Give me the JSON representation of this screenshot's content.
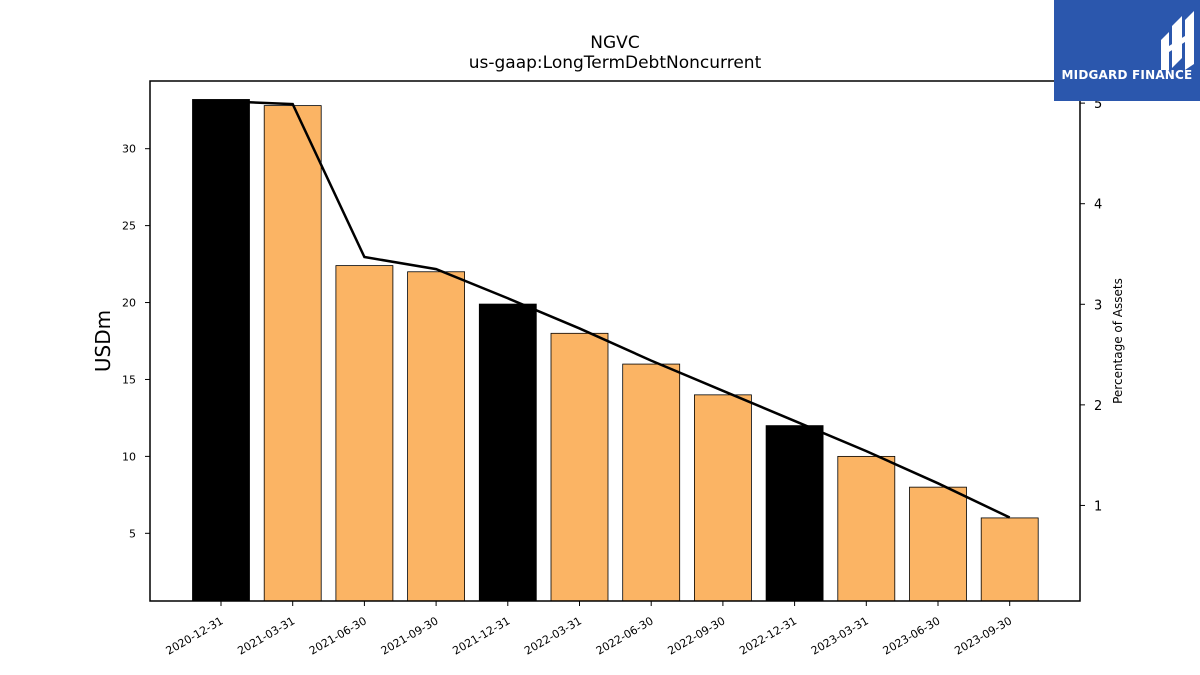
{
  "chart_data": {
    "type": "bar",
    "title": "NGVC",
    "subtitle": "us-gaap:LongTermDebtNoncurrent",
    "ylabel": "USDm",
    "y2label": "Percentage of Assets",
    "categories": [
      "2020-12-31",
      "2021-03-31",
      "2021-06-30",
      "2021-09-30",
      "2021-12-31",
      "2022-03-31",
      "2022-06-30",
      "2022-09-30",
      "2022-12-31",
      "2023-03-31",
      "2023-06-30",
      "2023-09-30"
    ],
    "series": [
      {
        "type": "bar",
        "axis": "left",
        "values": [
          33.2,
          32.8,
          22.4,
          22.0,
          19.9,
          18.0,
          16.0,
          14.0,
          12.0,
          10.0,
          8.0,
          6.0
        ],
        "colors": [
          "#000000",
          "#fbb464",
          "#fbb464",
          "#fbb464",
          "#000000",
          "#fbb464",
          "#fbb464",
          "#fbb464",
          "#000000",
          "#fbb464",
          "#fbb464",
          "#fbb464"
        ]
      },
      {
        "type": "line",
        "axis": "right",
        "color": "#000000",
        "values": [
          5.02,
          4.99,
          3.47,
          3.35,
          3.06,
          2.76,
          2.44,
          2.14,
          1.84,
          1.54,
          1.22,
          0.88
        ]
      }
    ],
    "ylim": [
      0.6,
      34.4
    ],
    "yticks": [
      5,
      10,
      15,
      20,
      25,
      30
    ],
    "y2lim": [
      0.05,
      5.22
    ],
    "y2ticks": [
      1,
      2,
      3,
      4,
      5
    ],
    "grid": false,
    "legend": "none"
  },
  "logo": {
    "text": "MIDGARD FINANCE",
    "bg": "#2b57ad"
  }
}
